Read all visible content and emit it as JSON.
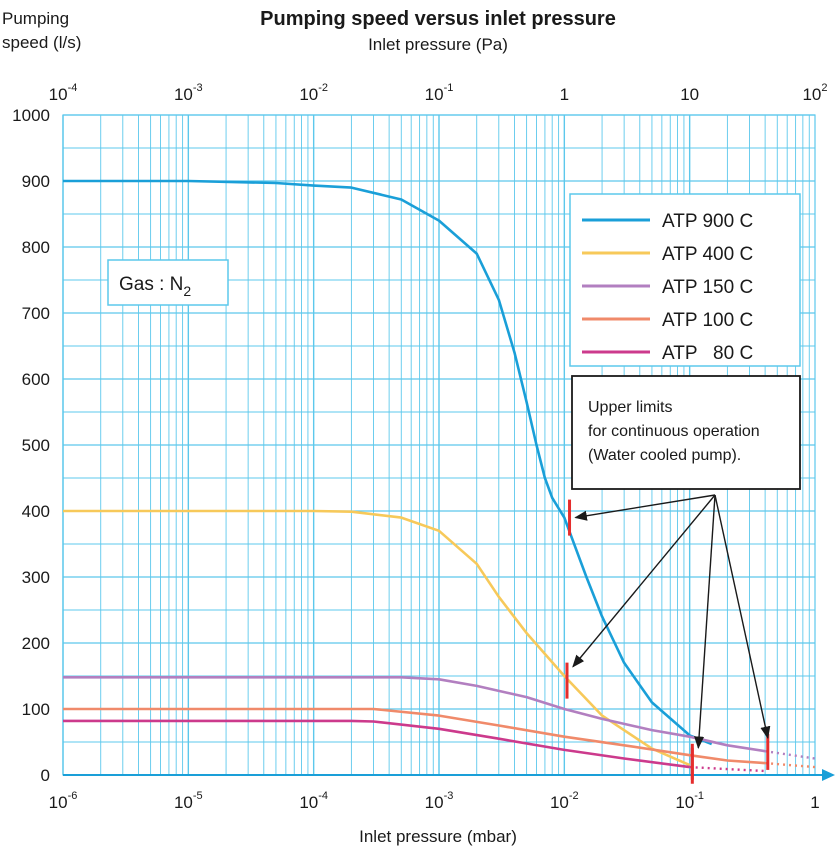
{
  "chart_data": {
    "type": "line",
    "title": "Pumping speed versus inlet pressure",
    "ylabel_line1": "Pumping",
    "ylabel_line2": "speed  (l/s)",
    "xlabel_bottom": "Inlet pressure (mbar)",
    "xlabel_top": "Inlet pressure (Pa)",
    "xscale": "log",
    "xlim_mbar": [
      1e-06,
      1
    ],
    "ylim": [
      0,
      1000
    ],
    "yticks": [
      0,
      100,
      200,
      300,
      400,
      500,
      600,
      700,
      800,
      900,
      1000
    ],
    "bottom_ticks": [
      {
        "x": 1e-06,
        "base": "10",
        "exp": "-6"
      },
      {
        "x": 1e-05,
        "base": "10",
        "exp": "-5"
      },
      {
        "x": 0.0001,
        "base": "10",
        "exp": "-4"
      },
      {
        "x": 0.001,
        "base": "10",
        "exp": "-3"
      },
      {
        "x": 0.01,
        "base": "10",
        "exp": "-2"
      },
      {
        "x": 0.1,
        "base": "10",
        "exp": "-1"
      },
      {
        "x": 1,
        "base": "1",
        "exp": ""
      }
    ],
    "top_ticks": [
      {
        "x": 0.0001,
        "base": "10",
        "exp": "-4"
      },
      {
        "x": 0.001,
        "base": "10",
        "exp": "-3"
      },
      {
        "x": 0.01,
        "base": "10",
        "exp": "-2"
      },
      {
        "x": 0.1,
        "base": "10",
        "exp": "-1"
      },
      {
        "x": 1,
        "base": "1",
        "exp": ""
      },
      {
        "x": 10,
        "base": "10",
        "exp": ""
      },
      {
        "x": 100,
        "base": "10",
        "exp": "2"
      }
    ],
    "grid": true,
    "legend_position": "top-right",
    "annotation": {
      "lines": [
        "Upper limits",
        "for continuous operation",
        "(Water cooled pump)."
      ]
    },
    "gas_label": {
      "prefix": "Gas : N",
      "sub": "2"
    },
    "series": [
      {
        "name": "ATP 900 C",
        "color": "#1a9fd8",
        "points": [
          [
            1e-06,
            900
          ],
          [
            1e-05,
            900
          ],
          [
            5e-05,
            897
          ],
          [
            0.0001,
            893
          ],
          [
            0.0002,
            890
          ],
          [
            0.0005,
            872
          ],
          [
            0.001,
            840
          ],
          [
            0.002,
            790
          ],
          [
            0.003,
            720
          ],
          [
            0.004,
            640
          ],
          [
            0.005,
            565
          ],
          [
            0.006,
            500
          ],
          [
            0.007,
            450
          ],
          [
            0.008,
            420
          ],
          [
            0.01,
            390
          ],
          [
            0.015,
            300
          ],
          [
            0.02,
            240
          ],
          [
            0.03,
            170
          ],
          [
            0.05,
            110
          ],
          [
            0.1,
            60
          ],
          [
            0.15,
            47
          ]
        ],
        "limit": {
          "x": 0.011,
          "y": 390
        }
      },
      {
        "name": "ATP 400 C",
        "color": "#f7c95a",
        "points": [
          [
            1e-06,
            400
          ],
          [
            1e-05,
            400
          ],
          [
            0.0001,
            400
          ],
          [
            0.0002,
            399
          ],
          [
            0.0005,
            390
          ],
          [
            0.001,
            370
          ],
          [
            0.002,
            320
          ],
          [
            0.003,
            270
          ],
          [
            0.005,
            215
          ],
          [
            0.01,
            150
          ],
          [
            0.02,
            90
          ],
          [
            0.05,
            40
          ],
          [
            0.1,
            15
          ]
        ],
        "limit": {
          "x": 0.0105,
          "y": 143
        }
      },
      {
        "name": "ATP 150 C",
        "color": "#b27fc0",
        "points": [
          [
            1e-06,
            148
          ],
          [
            0.0001,
            148
          ],
          [
            0.0005,
            148
          ],
          [
            0.001,
            145
          ],
          [
            0.002,
            135
          ],
          [
            0.005,
            118
          ],
          [
            0.01,
            100
          ],
          [
            0.02,
            85
          ],
          [
            0.05,
            68
          ],
          [
            0.1,
            58
          ],
          [
            0.2,
            45
          ],
          [
            0.4,
            36
          ]
        ],
        "dashed": [
          [
            0.4,
            36
          ],
          [
            1,
            25
          ]
        ],
        "limit": {
          "x": 0.42,
          "y": 35
        }
      },
      {
        "name": "ATP 100 C",
        "color": "#f08a6a",
        "points": [
          [
            1e-06,
            100
          ],
          [
            0.0002,
            100
          ],
          [
            0.0003,
            100
          ],
          [
            0.001,
            90
          ],
          [
            0.003,
            75
          ],
          [
            0.01,
            58
          ],
          [
            0.03,
            45
          ],
          [
            0.1,
            30
          ],
          [
            0.2,
            22
          ],
          [
            0.4,
            18
          ]
        ],
        "dashed": [
          [
            0.4,
            18
          ],
          [
            1,
            12
          ]
        ],
        "limit": {
          "x": 0.105,
          "y": 20
        }
      },
      {
        "name": "ATP   80 C",
        "color": "#cc3a8c",
        "points": [
          [
            1e-06,
            82
          ],
          [
            0.0002,
            82
          ],
          [
            0.0003,
            81
          ],
          [
            0.001,
            70
          ],
          [
            0.003,
            55
          ],
          [
            0.01,
            38
          ],
          [
            0.03,
            25
          ],
          [
            0.1,
            12
          ]
        ],
        "dashed": [
          [
            0.1,
            12
          ],
          [
            0.2,
            9
          ],
          [
            0.4,
            6
          ]
        ],
        "limit": {
          "x": 0.105,
          "y": 14
        }
      }
    ]
  }
}
